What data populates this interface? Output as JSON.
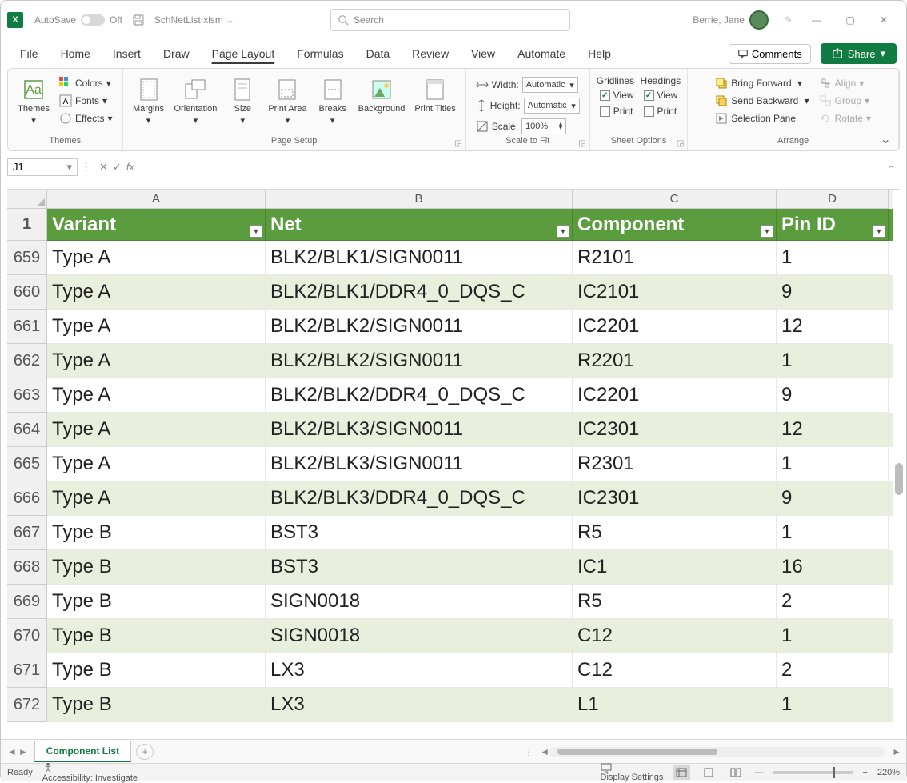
{
  "title": {
    "autosave_label": "AutoSave",
    "autosave_state": "Off",
    "filename": "SchNetList.xlsm",
    "search_placeholder": "Search",
    "user_name": "Berrie, Jane"
  },
  "tabs": {
    "items": [
      "File",
      "Home",
      "Insert",
      "Draw",
      "Page Layout",
      "Formulas",
      "Data",
      "Review",
      "View",
      "Automate",
      "Help"
    ],
    "active_index": 4,
    "comments": "Comments",
    "share": "Share"
  },
  "ribbon": {
    "themes": {
      "label": "Themes",
      "themes": "Themes",
      "colors": "Colors",
      "fonts": "Fonts",
      "effects": "Effects"
    },
    "page_setup": {
      "label": "Page Setup",
      "margins": "Margins",
      "orientation": "Orientation",
      "size": "Size",
      "print_area": "Print Area",
      "breaks": "Breaks",
      "background": "Background",
      "print_titles": "Print Titles"
    },
    "scale": {
      "label": "Scale to Fit",
      "width": "Width:",
      "height": "Height:",
      "scale": "Scale:",
      "auto": "Automatic",
      "pct": "100%"
    },
    "sheet_options": {
      "label": "Sheet Options",
      "gridlines": "Gridlines",
      "headings": "Headings",
      "view": "View",
      "print": "Print"
    },
    "arrange": {
      "label": "Arrange",
      "bring_forward": "Bring Forward",
      "send_backward": "Send Backward",
      "selection_pane": "Selection Pane",
      "align": "Align",
      "group": "Group",
      "rotate": "Rotate"
    }
  },
  "name_box": "J1",
  "columns": {
    "A": "A",
    "B": "B",
    "C": "C",
    "D": "D"
  },
  "headers": {
    "variant": "Variant",
    "net": "Net",
    "component": "Component",
    "pin_id": "Pin ID"
  },
  "header_row_num": "1",
  "rows": [
    {
      "n": "659",
      "v": "Type A",
      "net": "BLK2/BLK1/SIGN0011",
      "c": "R2101",
      "p": "1",
      "alt": false
    },
    {
      "n": "660",
      "v": "Type A",
      "net": "BLK2/BLK1/DDR4_0_DQS_C",
      "c": "IC2101",
      "p": "9",
      "alt": true
    },
    {
      "n": "661",
      "v": "Type A",
      "net": "BLK2/BLK2/SIGN0011",
      "c": "IC2201",
      "p": "12",
      "alt": false
    },
    {
      "n": "662",
      "v": "Type A",
      "net": "BLK2/BLK2/SIGN0011",
      "c": "R2201",
      "p": "1",
      "alt": true
    },
    {
      "n": "663",
      "v": "Type A",
      "net": "BLK2/BLK2/DDR4_0_DQS_C",
      "c": "IC2201",
      "p": "9",
      "alt": false
    },
    {
      "n": "664",
      "v": "Type A",
      "net": "BLK2/BLK3/SIGN0011",
      "c": "IC2301",
      "p": "12",
      "alt": true
    },
    {
      "n": "665",
      "v": "Type A",
      "net": "BLK2/BLK3/SIGN0011",
      "c": "R2301",
      "p": "1",
      "alt": false
    },
    {
      "n": "666",
      "v": "Type A",
      "net": "BLK2/BLK3/DDR4_0_DQS_C",
      "c": "IC2301",
      "p": "9",
      "alt": true
    },
    {
      "n": "667",
      "v": "Type B",
      "net": "BST3",
      "c": "R5",
      "p": "1",
      "alt": false
    },
    {
      "n": "668",
      "v": "Type B",
      "net": "BST3",
      "c": "IC1",
      "p": "16",
      "alt": true
    },
    {
      "n": "669",
      "v": "Type B",
      "net": "SIGN0018",
      "c": "R5",
      "p": "2",
      "alt": false
    },
    {
      "n": "670",
      "v": "Type B",
      "net": "SIGN0018",
      "c": "C12",
      "p": "1",
      "alt": true
    },
    {
      "n": "671",
      "v": "Type B",
      "net": "LX3",
      "c": "C12",
      "p": "2",
      "alt": false
    },
    {
      "n": "672",
      "v": "Type B",
      "net": "LX3",
      "c": "L1",
      "p": "1",
      "alt": true
    }
  ],
  "sheet_tab": "Component List",
  "status": {
    "ready": "Ready",
    "accessibility": "Accessibility: Investigate",
    "display": "Display Settings",
    "zoom": "220%"
  },
  "colors": {
    "brand_green": "#107c41",
    "header_green": "#5b9c3e",
    "alt_row": "#e8f0dd"
  }
}
